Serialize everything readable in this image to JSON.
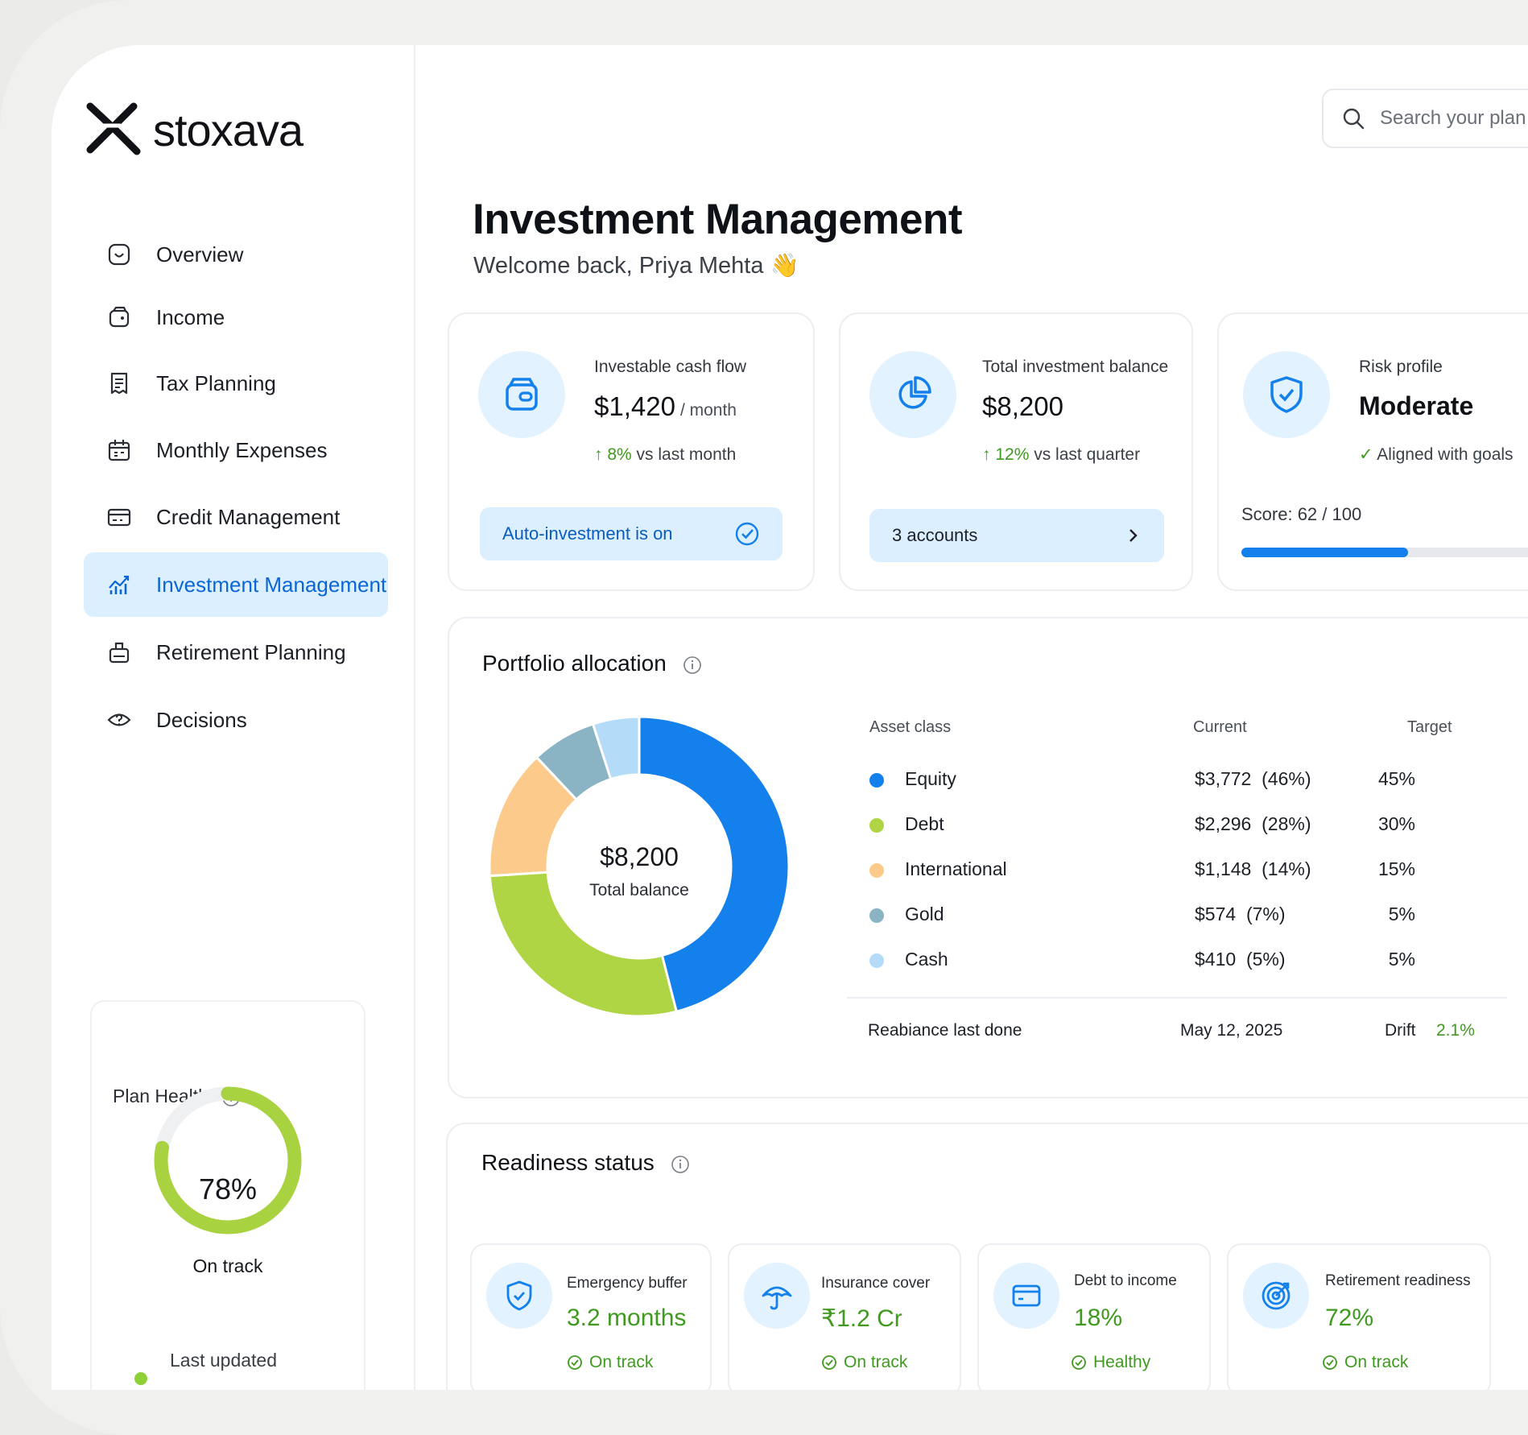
{
  "brand": {
    "name": "stoxava"
  },
  "sidebar": {
    "items": [
      {
        "label": "Overview",
        "icon": "clock-icon"
      },
      {
        "label": "Income",
        "icon": "wallet-icon"
      },
      {
        "label": "Tax Planning",
        "icon": "receipt-icon"
      },
      {
        "label": "Monthly Expenses",
        "icon": "calendar-icon"
      },
      {
        "label": "Credit Management",
        "icon": "credit-card-icon"
      },
      {
        "label": "Investment Management",
        "icon": "chart-icon",
        "active": true
      },
      {
        "label": "Retirement Planning",
        "icon": "briefcase-icon"
      },
      {
        "label": "Decisions",
        "icon": "question-icon"
      }
    ],
    "plan_health": {
      "title": "Plan Health",
      "percent_text": "78%",
      "percent": 78,
      "status": "On track",
      "last_updated": "Last updated"
    }
  },
  "header": {
    "search_placeholder": "Search your plan",
    "title": "Investment Management",
    "welcome": "Welcome back, Priya Mehta 👋"
  },
  "kpis": {
    "cashflow": {
      "label": "Investable cash flow",
      "value": "$1,420",
      "unit": "/ month",
      "trend_pct": "8%",
      "trend_text": "vs last month",
      "pill": "Auto-investment is on"
    },
    "balance": {
      "label": "Total investment balance",
      "value": "$8,200",
      "trend_pct": "12%",
      "trend_text": "vs last quarter",
      "pill": "3 accounts"
    },
    "risk": {
      "label": "Risk profile",
      "value": "Moderate",
      "note": "Aligned with goals",
      "score": "Score: 62 / 100",
      "score_value": 62,
      "score_max": 100
    }
  },
  "portfolio": {
    "title": "Portfolio allocation",
    "center_value": "$8,200",
    "center_label": "Total balance",
    "headers": {
      "asset": "Asset class",
      "current": "Current",
      "target": "Target"
    },
    "rows": [
      {
        "name": "Equity",
        "current": "$3,772  (46%)",
        "target": "45%",
        "color": "#1380ec",
        "pct": 46
      },
      {
        "name": "Debt",
        "current": "$2,296  (28%)",
        "target": "30%",
        "color": "#afd444",
        "pct": 28
      },
      {
        "name": "International",
        "current": "$1,148  (14%)",
        "target": "15%",
        "color": "#fccb8c",
        "pct": 14
      },
      {
        "name": "Gold",
        "current": "$574  (7%)",
        "target": "5%",
        "color": "#8ab4c4",
        "pct": 7
      },
      {
        "name": "Cash",
        "current": "$410  (5%)",
        "target": "5%",
        "color": "#b4dcf8",
        "pct": 5
      }
    ],
    "footer": {
      "rebalance_label": "Reabiance last done",
      "rebalance_date": "May 12, 2025",
      "drift_label": "Drift",
      "drift_value": "2.1%"
    }
  },
  "readiness": {
    "title": "Readiness status",
    "items": [
      {
        "label": "Emergency buffer",
        "value": "3.2 months",
        "status": "On track",
        "icon": "shield-icon"
      },
      {
        "label": "Insurance cover",
        "value": "₹1.2 Cr",
        "status": "On track",
        "icon": "umbrella-icon"
      },
      {
        "label": "Debt to income",
        "value": "18%",
        "status": "Healthy",
        "icon": "card-icon"
      },
      {
        "label": "Retirement readiness",
        "value": "72%",
        "status": "On track",
        "icon": "target-icon"
      }
    ]
  },
  "colors": {
    "accent": "#1380ec",
    "positive": "#3f9a1f",
    "active_bg": "#dcefff",
    "health_ring": "#a8d240"
  }
}
